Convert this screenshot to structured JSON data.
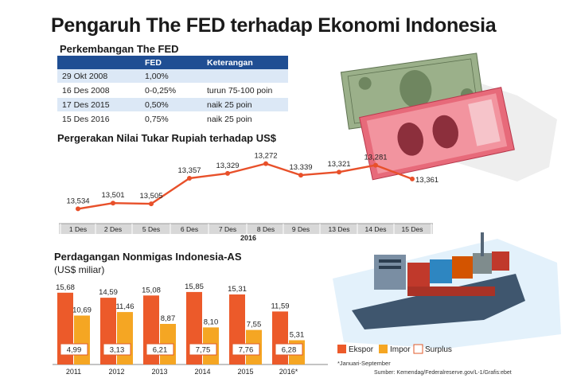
{
  "title": "Pengaruh The FED terhadap Ekonomi Indonesia",
  "fed_section": {
    "title": "Perkembangan The FED",
    "headers": [
      "",
      "FED",
      "Keterangan"
    ],
    "rows": [
      {
        "date": "29 Okt 2008",
        "rate": "1,00%",
        "note": ""
      },
      {
        "date": "16 Des 2008",
        "rate": "0-0,25%",
        "note": "turun 75-100 poin"
      },
      {
        "date": "17 Des 2015",
        "rate": "0,50%",
        "note": "naik 25 poin"
      },
      {
        "date": "15 Des 2016",
        "rate": "0,75%",
        "note": "naik 25 poin"
      }
    ]
  },
  "colors": {
    "header_blue": "#1f4e93",
    "row_tint": "#dce8f6",
    "line_orange": "#e8502a",
    "ekspor": "#ec5a2a",
    "impor": "#f5a623",
    "surplus_border": "#e05a2a",
    "axis_band": "#d8d8d8"
  },
  "chart_data": [
    {
      "type": "line",
      "title": "Pergerakan Nilai Tukar Rupiah terhadap US$",
      "categories": [
        "1 Des",
        "2 Des",
        "5 Des",
        "6 Des",
        "7 Des",
        "8 Des",
        "9 Des",
        "13 Des",
        "14 Des",
        "15 Des"
      ],
      "values": [
        13534,
        13501,
        13505,
        13357,
        13329,
        13272,
        13339,
        13321,
        13281,
        13361
      ],
      "labels": [
        "13,534",
        "13,501",
        "13,505",
        "13,357",
        "13,329",
        "13,272",
        "13.339",
        "13,321",
        "13,281",
        "13,361"
      ],
      "axis_note": "2016",
      "inverted_y": true,
      "ylim": [
        13260,
        13560
      ]
    },
    {
      "type": "bar",
      "title": "Perdagangan Nonmigas Indonesia-AS",
      "ylabel": "(US$ miliar)",
      "categories": [
        "2011",
        "2012",
        "2013",
        "2014",
        "2015",
        "2016*"
      ],
      "series": [
        {
          "name": "Ekspor",
          "values": [
            15.68,
            14.59,
            15.08,
            15.85,
            15.31,
            11.59
          ],
          "labels": [
            "15,68",
            "14,59",
            "15,08",
            "15,85",
            "15,31",
            "11,59"
          ]
        },
        {
          "name": "Impor",
          "values": [
            10.69,
            11.46,
            8.87,
            8.1,
            7.55,
            5.31
          ],
          "labels": [
            "10,69",
            "11,46",
            "8,87",
            "8,10",
            "7,55",
            "5,31"
          ]
        },
        {
          "name": "Surplus",
          "values": [
            4.99,
            3.13,
            6.21,
            7.75,
            7.76,
            6.28
          ],
          "labels": [
            "4,99",
            "3,13",
            "6,21",
            "7,75",
            "7,76",
            "6,28"
          ]
        }
      ],
      "footnote": "*Januari-September",
      "legend_position": "bottom-right",
      "ylim": [
        0,
        16
      ]
    }
  ],
  "source": "Sumber: Kemendag/Federalreserve.gov/L-1/Grafis:ebet"
}
